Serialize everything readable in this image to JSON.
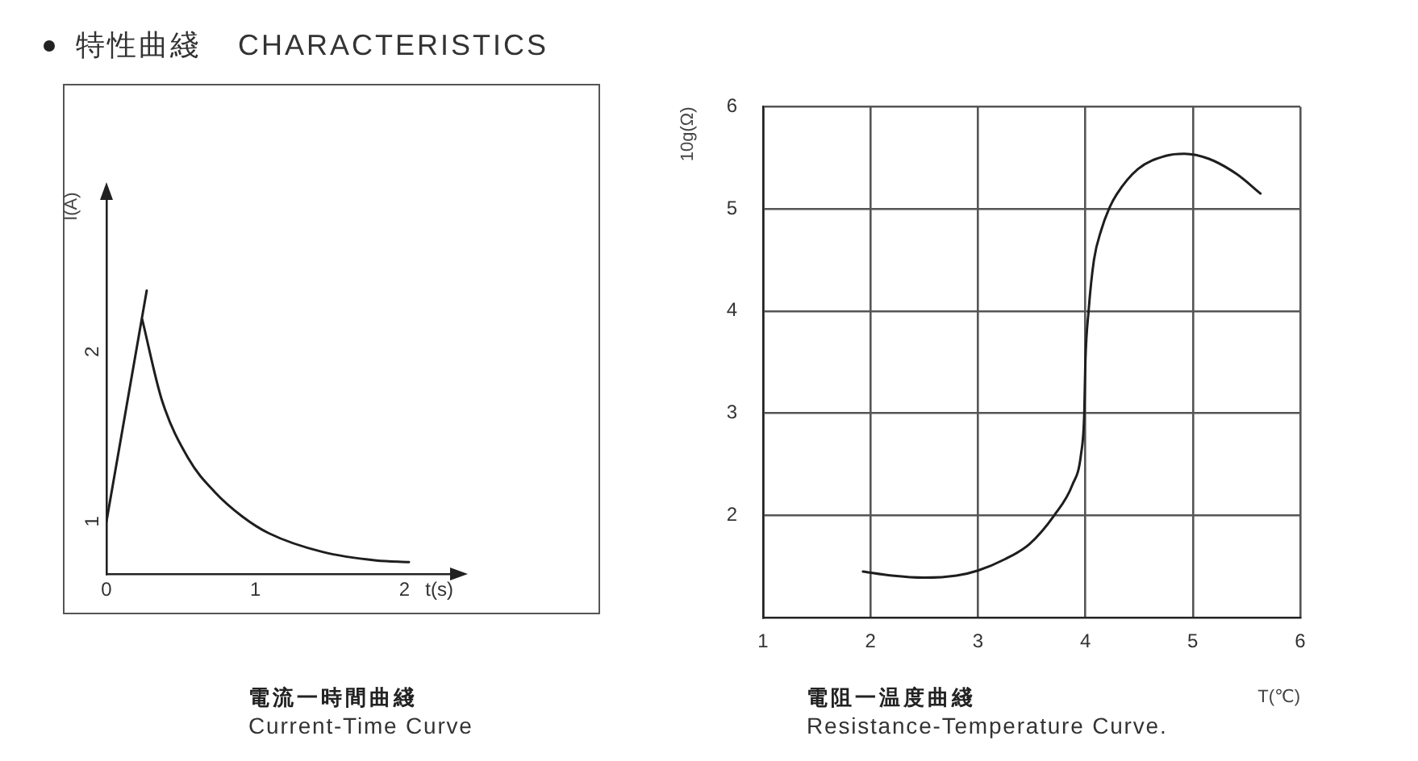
{
  "chart_data": [
    {
      "type": "line",
      "title": "電流一時間曲綫",
      "subtitle": "Current-Time Curve",
      "xlabel": "t(s)",
      "ylabel": "I(A)",
      "annotations": [
        "特性曲綫 CHARACTERISTICS"
      ],
      "xlim": [
        0,
        2.36
      ],
      "ylim": [
        0.69,
        2.94
      ],
      "xticks": [
        0,
        1,
        2
      ],
      "yticks": [
        1,
        2
      ],
      "series": [
        {
          "color": "#1e1e1e",
          "x": [
            0,
            0.27
          ],
          "values": [
            1.0,
            2.36
          ]
        },
        {
          "color": "#1e1e1e",
          "x": [
            0.24,
            0.37,
            0.55,
            0.73,
            0.91,
            1.09,
            1.45,
            1.81,
            2.03
          ],
          "values": [
            2.19,
            1.72,
            1.37,
            1.17,
            1.03,
            0.93,
            0.82,
            0.77,
            0.76
          ]
        }
      ]
    },
    {
      "type": "line",
      "title": "電阻一温度曲綫",
      "subtitle": "Resistance-Temperature Curve.",
      "xlabel": "T(℃)",
      "ylabel": "10g(Ω)",
      "xlim": [
        1,
        6
      ],
      "ylim": [
        1,
        6
      ],
      "xticks": [
        1,
        2,
        3,
        4,
        5,
        6
      ],
      "yticks": [
        2,
        3,
        4,
        5,
        6
      ],
      "grid": true,
      "series": [
        {
          "color": "#1e1e1e",
          "x": [
            1.93,
            2.2,
            2.5,
            2.8,
            3.0,
            3.25,
            3.48,
            3.71,
            3.88,
            3.96,
            3.99,
            4.0,
            4.03,
            4.08,
            4.15,
            4.22,
            4.29,
            4.49,
            4.75,
            4.92,
            5.15,
            5.41,
            5.63
          ],
          "values": [
            1.45,
            1.41,
            1.39,
            1.41,
            1.46,
            1.57,
            1.72,
            2.0,
            2.3,
            2.6,
            3.0,
            3.5,
            4.0,
            4.5,
            4.8,
            5.0,
            5.14,
            5.39,
            5.52,
            5.54,
            5.49,
            5.34,
            5.15
          ]
        }
      ]
    }
  ]
}
